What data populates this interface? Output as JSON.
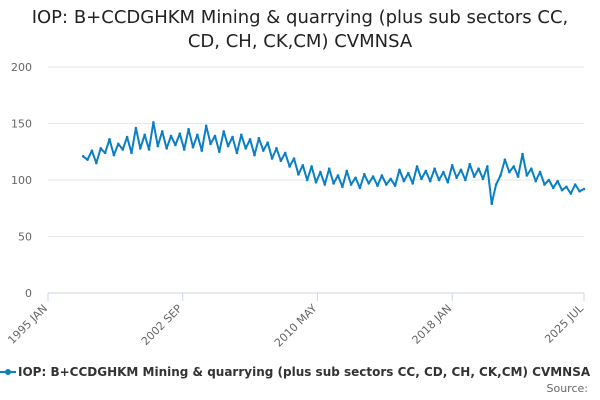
{
  "chart_data": {
    "type": "line",
    "title": "IOP: B+CCDGHKM Mining & quarrying (plus sub sectors CC, CD, CH, CK,CM) CVMNSA",
    "title_lines": [
      "IOP: B+CCDGHKM Mining & quarrying (plus sub sectors CC,",
      "CD, CH, CK,CM) CVMNSA"
    ],
    "xlabel": "",
    "ylabel": "",
    "ylim": [
      0,
      200
    ],
    "yticks": [
      0,
      50,
      100,
      150,
      200
    ],
    "xlim": [
      "1995-01",
      "2025-07"
    ],
    "xticks": [
      "1995 JAN",
      "2002 SEP",
      "2010 MAY",
      "2018 JAN",
      "2025 JUL"
    ],
    "grid": true,
    "legend_position": "bottom",
    "series": [
      {
        "name": "IOP: B+CCDGHKM Mining & quarrying (plus sub sectors CC, CD, CH, CK,CM) CVMNSA",
        "color": "#0a7fc4",
        "points": [
          [
            "1997-01",
            121
          ],
          [
            "1997-04",
            118
          ],
          [
            "1997-07",
            126
          ],
          [
            "1997-10",
            115
          ],
          [
            "1998-01",
            128
          ],
          [
            "1998-04",
            124
          ],
          [
            "1998-07",
            136
          ],
          [
            "1998-10",
            122
          ],
          [
            "1999-01",
            132
          ],
          [
            "1999-04",
            127
          ],
          [
            "1999-07",
            138
          ],
          [
            "1999-10",
            124
          ],
          [
            "2000-01",
            146
          ],
          [
            "2000-04",
            128
          ],
          [
            "2000-07",
            140
          ],
          [
            "2000-10",
            127
          ],
          [
            "2001-01",
            151
          ],
          [
            "2001-04",
            130
          ],
          [
            "2001-07",
            143
          ],
          [
            "2001-10",
            128
          ],
          [
            "2002-01",
            139
          ],
          [
            "2002-04",
            131
          ],
          [
            "2002-07",
            141
          ],
          [
            "2002-10",
            127
          ],
          [
            "2003-01",
            145
          ],
          [
            "2003-04",
            129
          ],
          [
            "2003-07",
            140
          ],
          [
            "2003-10",
            126
          ],
          [
            "2004-01",
            148
          ],
          [
            "2004-04",
            132
          ],
          [
            "2004-07",
            139
          ],
          [
            "2004-10",
            125
          ],
          [
            "2005-01",
            143
          ],
          [
            "2005-04",
            130
          ],
          [
            "2005-07",
            138
          ],
          [
            "2005-10",
            124
          ],
          [
            "2006-01",
            140
          ],
          [
            "2006-04",
            128
          ],
          [
            "2006-07",
            136
          ],
          [
            "2006-10",
            122
          ],
          [
            "2007-01",
            137
          ],
          [
            "2007-04",
            126
          ],
          [
            "2007-07",
            133
          ],
          [
            "2007-10",
            119
          ],
          [
            "2008-01",
            128
          ],
          [
            "2008-04",
            117
          ],
          [
            "2008-07",
            124
          ],
          [
            "2008-10",
            112
          ],
          [
            "2009-01",
            119
          ],
          [
            "2009-04",
            105
          ],
          [
            "2009-07",
            113
          ],
          [
            "2009-10",
            100
          ],
          [
            "2010-01",
            112
          ],
          [
            "2010-04",
            98
          ],
          [
            "2010-07",
            107
          ],
          [
            "2010-10",
            96
          ],
          [
            "2011-01",
            110
          ],
          [
            "2011-04",
            97
          ],
          [
            "2011-07",
            104
          ],
          [
            "2011-10",
            94
          ],
          [
            "2012-01",
            108
          ],
          [
            "2012-04",
            96
          ],
          [
            "2012-07",
            102
          ],
          [
            "2012-10",
            93
          ],
          [
            "2013-01",
            105
          ],
          [
            "2013-04",
            97
          ],
          [
            "2013-07",
            103
          ],
          [
            "2013-10",
            95
          ],
          [
            "2014-01",
            104
          ],
          [
            "2014-04",
            96
          ],
          [
            "2014-07",
            101
          ],
          [
            "2014-10",
            95
          ],
          [
            "2015-01",
            109
          ],
          [
            "2015-04",
            99
          ],
          [
            "2015-07",
            106
          ],
          [
            "2015-10",
            97
          ],
          [
            "2016-01",
            112
          ],
          [
            "2016-04",
            101
          ],
          [
            "2016-07",
            108
          ],
          [
            "2016-10",
            99
          ],
          [
            "2017-01",
            110
          ],
          [
            "2017-04",
            100
          ],
          [
            "2017-07",
            107
          ],
          [
            "2017-10",
            98
          ],
          [
            "2018-01",
            113
          ],
          [
            "2018-04",
            102
          ],
          [
            "2018-07",
            109
          ],
          [
            "2018-10",
            100
          ],
          [
            "2019-01",
            114
          ],
          [
            "2019-04",
            103
          ],
          [
            "2019-07",
            110
          ],
          [
            "2019-10",
            101
          ],
          [
            "2020-01",
            112
          ],
          [
            "2020-04",
            79
          ],
          [
            "2020-07",
            96
          ],
          [
            "2020-10",
            104
          ],
          [
            "2021-01",
            118
          ],
          [
            "2021-04",
            107
          ],
          [
            "2021-07",
            112
          ],
          [
            "2021-10",
            103
          ],
          [
            "2022-01",
            123
          ],
          [
            "2022-04",
            104
          ],
          [
            "2022-07",
            110
          ],
          [
            "2022-10",
            99
          ],
          [
            "2023-01",
            107
          ],
          [
            "2023-04",
            96
          ],
          [
            "2023-07",
            100
          ],
          [
            "2023-10",
            93
          ],
          [
            "2024-01",
            99
          ],
          [
            "2024-04",
            91
          ],
          [
            "2024-07",
            94
          ],
          [
            "2024-10",
            88
          ],
          [
            "2025-01",
            96
          ],
          [
            "2025-04",
            90
          ],
          [
            "2025-07",
            92
          ]
        ]
      }
    ]
  },
  "legend": {
    "label": "IOP: B+CCDGHKM Mining & quarrying (plus sub sectors CC, CD, CH, CK,CM) CVMNSA"
  },
  "footer": {
    "source_label": "Source:"
  },
  "colors": {
    "series": "#0a7fc4",
    "grid": "#e6e6e6",
    "axis": "#ccd6eb",
    "tick_label": "#666666",
    "title": "#222222"
  }
}
